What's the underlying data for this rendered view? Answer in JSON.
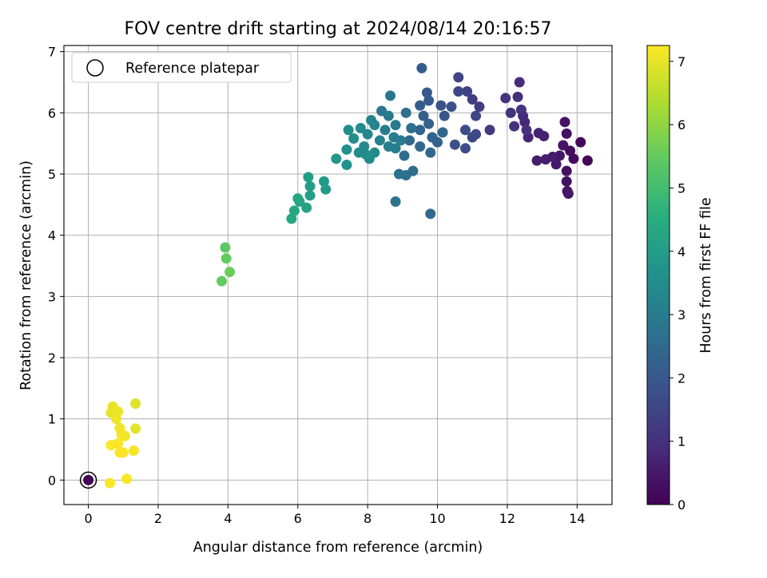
{
  "chart_data": {
    "type": "scatter",
    "title": "FOV centre drift starting at 2024/08/14 20:16:57",
    "xlabel": "Angular distance from reference (arcmin)",
    "ylabel": "Rotation from reference (arcmin)",
    "xlim": [
      -0.7,
      15.0
    ],
    "ylim": [
      -0.4,
      7.1
    ],
    "xticks": [
      "0",
      "2",
      "4",
      "6",
      "8",
      "10",
      "12",
      "14"
    ],
    "yticks": [
      "0",
      "1",
      "2",
      "3",
      "4",
      "5",
      "6",
      "7"
    ],
    "grid": true,
    "legend": {
      "placement": "top-left",
      "entries": [
        "Reference platepar"
      ]
    },
    "colorbar": {
      "label": "Hours from first FF file",
      "range": [
        0,
        7.25
      ],
      "colormap": "viridis",
      "ticks": [
        "0",
        "1",
        "2",
        "3",
        "4",
        "5",
        "6",
        "7"
      ]
    },
    "reference_point": {
      "x": 0,
      "y": 0,
      "label": "Reference platepar"
    },
    "points": [
      {
        "x": 0.0,
        "y": 0.0,
        "h": 0.0
      },
      {
        "x": 14.3,
        "y": 5.22,
        "h": 0.1
      },
      {
        "x": 14.1,
        "y": 5.52,
        "h": 0.15
      },
      {
        "x": 13.9,
        "y": 5.25,
        "h": 0.2
      },
      {
        "x": 13.8,
        "y": 5.38,
        "h": 0.25
      },
      {
        "x": 13.7,
        "y": 5.66,
        "h": 0.3
      },
      {
        "x": 13.65,
        "y": 5.85,
        "h": 0.35
      },
      {
        "x": 13.7,
        "y": 5.05,
        "h": 0.3
      },
      {
        "x": 13.7,
        "y": 4.88,
        "h": 0.35
      },
      {
        "x": 13.72,
        "y": 4.72,
        "h": 0.4
      },
      {
        "x": 13.75,
        "y": 4.68,
        "h": 0.45
      },
      {
        "x": 13.6,
        "y": 5.47,
        "h": 0.4
      },
      {
        "x": 13.5,
        "y": 5.3,
        "h": 0.45
      },
      {
        "x": 13.4,
        "y": 5.16,
        "h": 0.5
      },
      {
        "x": 13.3,
        "y": 5.28,
        "h": 0.55
      },
      {
        "x": 13.1,
        "y": 5.24,
        "h": 0.6
      },
      {
        "x": 12.85,
        "y": 5.22,
        "h": 0.55
      },
      {
        "x": 13.05,
        "y": 5.62,
        "h": 0.65
      },
      {
        "x": 12.9,
        "y": 5.67,
        "h": 0.7
      },
      {
        "x": 12.6,
        "y": 5.6,
        "h": 0.75
      },
      {
        "x": 12.5,
        "y": 5.85,
        "h": 0.8
      },
      {
        "x": 12.45,
        "y": 5.95,
        "h": 0.85
      },
      {
        "x": 12.35,
        "y": 6.5,
        "h": 0.9
      },
      {
        "x": 12.3,
        "y": 6.26,
        "h": 0.95
      },
      {
        "x": 12.2,
        "y": 5.78,
        "h": 1.0
      },
      {
        "x": 12.1,
        "y": 6.0,
        "h": 1.0
      },
      {
        "x": 11.95,
        "y": 6.24,
        "h": 1.05
      },
      {
        "x": 12.4,
        "y": 6.05,
        "h": 1.05
      },
      {
        "x": 12.55,
        "y": 5.72,
        "h": 1.0
      },
      {
        "x": 11.5,
        "y": 5.72,
        "h": 1.2
      },
      {
        "x": 11.2,
        "y": 6.1,
        "h": 1.3
      },
      {
        "x": 11.0,
        "y": 6.22,
        "h": 1.35
      },
      {
        "x": 10.85,
        "y": 6.35,
        "h": 1.4
      },
      {
        "x": 10.6,
        "y": 6.58,
        "h": 1.5
      },
      {
        "x": 10.6,
        "y": 6.35,
        "h": 1.55
      },
      {
        "x": 11.1,
        "y": 5.95,
        "h": 1.5
      },
      {
        "x": 11.0,
        "y": 5.6,
        "h": 1.55
      },
      {
        "x": 11.1,
        "y": 5.65,
        "h": 1.6
      },
      {
        "x": 10.8,
        "y": 5.72,
        "h": 1.65
      },
      {
        "x": 10.8,
        "y": 5.42,
        "h": 1.7
      },
      {
        "x": 10.5,
        "y": 5.48,
        "h": 1.75
      },
      {
        "x": 10.4,
        "y": 6.1,
        "h": 1.8
      },
      {
        "x": 10.1,
        "y": 6.12,
        "h": 1.85
      },
      {
        "x": 10.2,
        "y": 5.95,
        "h": 1.9
      },
      {
        "x": 9.55,
        "y": 6.73,
        "h": 2.1
      },
      {
        "x": 9.7,
        "y": 6.33,
        "h": 2.0
      },
      {
        "x": 9.75,
        "y": 6.2,
        "h": 2.05
      },
      {
        "x": 9.5,
        "y": 6.12,
        "h": 2.15
      },
      {
        "x": 9.6,
        "y": 5.95,
        "h": 2.2
      },
      {
        "x": 9.75,
        "y": 5.82,
        "h": 2.25
      },
      {
        "x": 9.5,
        "y": 5.72,
        "h": 2.3
      },
      {
        "x": 9.85,
        "y": 5.6,
        "h": 2.35
      },
      {
        "x": 10.0,
        "y": 5.52,
        "h": 2.3
      },
      {
        "x": 10.15,
        "y": 5.68,
        "h": 2.4
      },
      {
        "x": 9.8,
        "y": 5.35,
        "h": 2.4
      },
      {
        "x": 9.5,
        "y": 5.45,
        "h": 2.45
      },
      {
        "x": 9.2,
        "y": 5.55,
        "h": 2.5
      },
      {
        "x": 9.05,
        "y": 5.3,
        "h": 2.55
      },
      {
        "x": 9.3,
        "y": 5.05,
        "h": 2.6
      },
      {
        "x": 9.1,
        "y": 4.98,
        "h": 2.65
      },
      {
        "x": 8.9,
        "y": 5.0,
        "h": 2.7
      },
      {
        "x": 8.8,
        "y": 4.55,
        "h": 2.75
      },
      {
        "x": 9.8,
        "y": 4.35,
        "h": 2.5
      },
      {
        "x": 9.1,
        "y": 6.0,
        "h": 2.6
      },
      {
        "x": 9.25,
        "y": 5.75,
        "h": 2.65
      },
      {
        "x": 8.65,
        "y": 6.28,
        "h": 2.8
      },
      {
        "x": 8.4,
        "y": 6.03,
        "h": 2.85
      },
      {
        "x": 8.6,
        "y": 5.95,
        "h": 2.9
      },
      {
        "x": 8.8,
        "y": 5.8,
        "h": 2.95
      },
      {
        "x": 8.5,
        "y": 5.72,
        "h": 3.0
      },
      {
        "x": 8.75,
        "y": 5.6,
        "h": 3.05
      },
      {
        "x": 8.6,
        "y": 5.45,
        "h": 3.1
      },
      {
        "x": 8.35,
        "y": 5.55,
        "h": 3.15
      },
      {
        "x": 8.95,
        "y": 5.55,
        "h": 3.0
      },
      {
        "x": 8.8,
        "y": 5.42,
        "h": 3.1
      },
      {
        "x": 8.2,
        "y": 5.8,
        "h": 3.2
      },
      {
        "x": 8.1,
        "y": 5.88,
        "h": 3.25
      },
      {
        "x": 8.0,
        "y": 5.65,
        "h": 3.3
      },
      {
        "x": 7.9,
        "y": 5.45,
        "h": 3.35
      },
      {
        "x": 7.8,
        "y": 5.75,
        "h": 3.4
      },
      {
        "x": 7.75,
        "y": 5.35,
        "h": 3.45
      },
      {
        "x": 7.6,
        "y": 5.58,
        "h": 3.5
      },
      {
        "x": 7.45,
        "y": 5.72,
        "h": 3.55
      },
      {
        "x": 7.4,
        "y": 5.4,
        "h": 3.6
      },
      {
        "x": 8.2,
        "y": 5.35,
        "h": 3.4
      },
      {
        "x": 8.05,
        "y": 5.25,
        "h": 3.45
      },
      {
        "x": 7.95,
        "y": 5.32,
        "h": 3.5
      },
      {
        "x": 7.4,
        "y": 5.15,
        "h": 3.7
      },
      {
        "x": 7.1,
        "y": 5.25,
        "h": 3.8
      },
      {
        "x": 6.75,
        "y": 4.88,
        "h": 3.9
      },
      {
        "x": 6.8,
        "y": 4.75,
        "h": 3.95
      },
      {
        "x": 6.3,
        "y": 4.95,
        "h": 4.0
      },
      {
        "x": 6.35,
        "y": 4.8,
        "h": 4.05
      },
      {
        "x": 6.35,
        "y": 4.65,
        "h": 4.1
      },
      {
        "x": 6.25,
        "y": 4.45,
        "h": 4.15
      },
      {
        "x": 6.05,
        "y": 4.55,
        "h": 4.2
      },
      {
        "x": 6.0,
        "y": 4.6,
        "h": 4.25
      },
      {
        "x": 5.9,
        "y": 4.4,
        "h": 4.3
      },
      {
        "x": 5.82,
        "y": 4.27,
        "h": 4.35
      },
      {
        "x": 4.05,
        "y": 3.4,
        "h": 5.6
      },
      {
        "x": 3.95,
        "y": 3.62,
        "h": 5.5
      },
      {
        "x": 3.92,
        "y": 3.8,
        "h": 5.4
      },
      {
        "x": 3.82,
        "y": 3.25,
        "h": 5.5
      },
      {
        "x": 1.35,
        "y": 1.25,
        "h": 6.9
      },
      {
        "x": 1.35,
        "y": 0.84,
        "h": 6.95
      },
      {
        "x": 0.7,
        "y": 1.2,
        "h": 7.0
      },
      {
        "x": 0.65,
        "y": 1.1,
        "h": 7.0
      },
      {
        "x": 0.85,
        "y": 1.12,
        "h": 7.05
      },
      {
        "x": 0.8,
        "y": 1.0,
        "h": 7.1
      },
      {
        "x": 0.9,
        "y": 0.85,
        "h": 7.1
      },
      {
        "x": 0.95,
        "y": 0.75,
        "h": 7.15
      },
      {
        "x": 1.05,
        "y": 0.72,
        "h": 7.15
      },
      {
        "x": 0.85,
        "y": 0.6,
        "h": 7.2
      },
      {
        "x": 0.65,
        "y": 0.57,
        "h": 7.2
      },
      {
        "x": 0.9,
        "y": 0.45,
        "h": 7.2
      },
      {
        "x": 1.0,
        "y": 0.45,
        "h": 7.2
      },
      {
        "x": 1.3,
        "y": 0.48,
        "h": 7.15
      },
      {
        "x": 1.1,
        "y": 0.02,
        "h": 7.2
      },
      {
        "x": 0.62,
        "y": -0.05,
        "h": 7.2
      }
    ]
  }
}
